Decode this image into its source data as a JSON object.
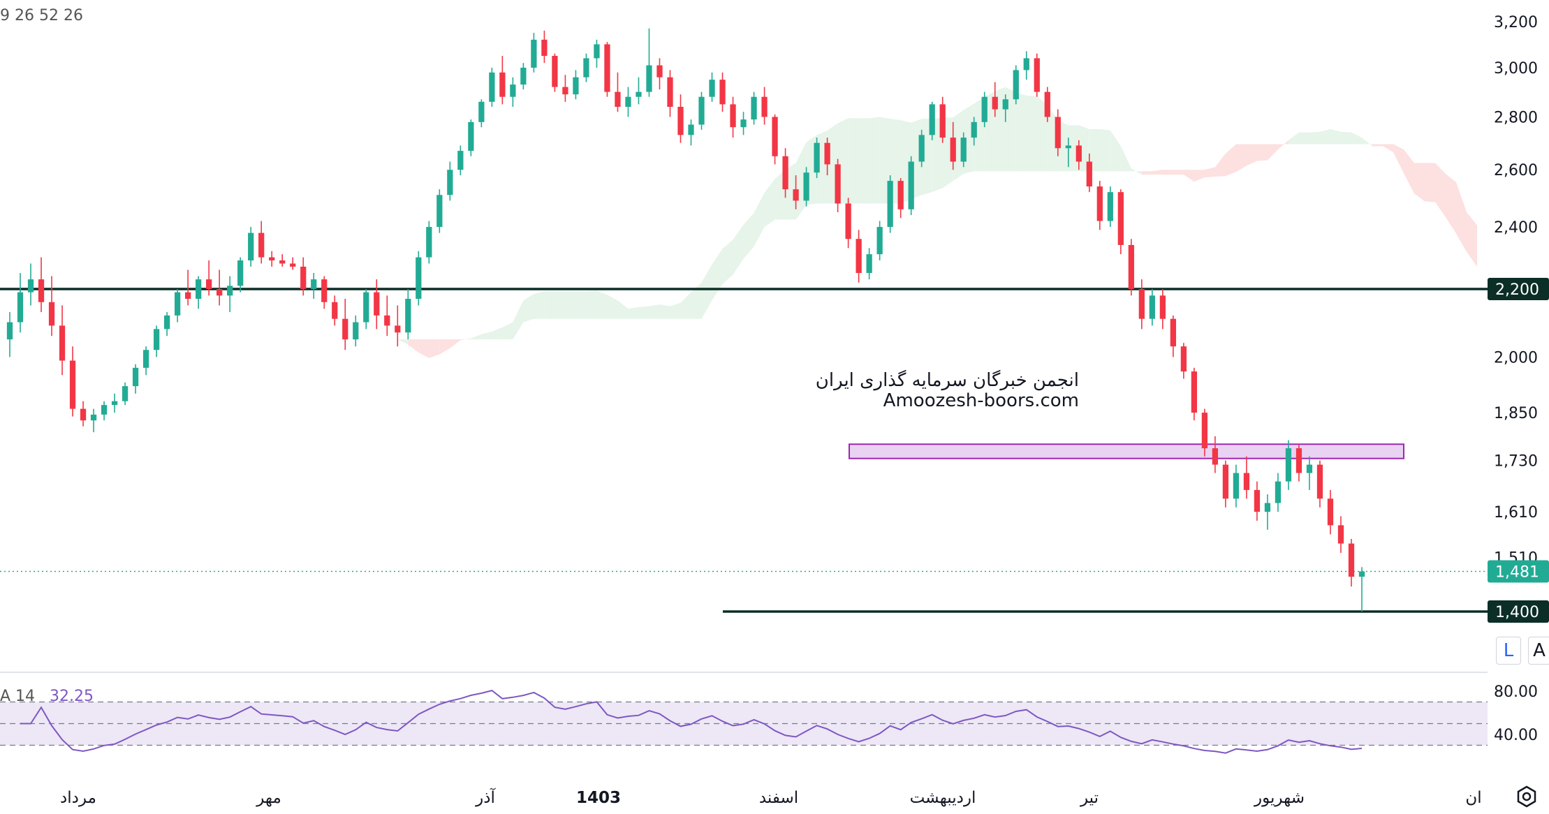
{
  "top_hud": {
    "values_text": "9 26 52 26"
  },
  "rsi_hud": {
    "label": "A 14",
    "value": "32.25"
  },
  "watermark": {
    "line1": "انجمن خبرگان سرمایه گذاری ایران",
    "line2": "Amoozesh-boors.com"
  },
  "buttons": {
    "log_label": "L",
    "auto_label": "A"
  },
  "colors": {
    "bull": "#22ab94",
    "bear": "#f23645",
    "kumo_bull": "#e6f4ea",
    "kumo_bear": "#fde0e0",
    "hline": "#0b2e26",
    "zone": "#e4c7ef",
    "zone_border": "#9c27b0",
    "rsi_line": "#7e57c2",
    "rsi_band": "#ede7f6",
    "last_price": "#22ab94"
  },
  "chart_data": {
    "type": "candlestick",
    "title": "",
    "price_axis": {
      "ticks": [
        "3,200",
        "3,000",
        "2,800",
        "2,600",
        "2,400",
        "2,000",
        "1,850",
        "1,730",
        "1,610",
        "1,510"
      ],
      "range": [
        1380,
        3220
      ],
      "scale": "log"
    },
    "time_axis": {
      "labels": [
        "مرداد",
        "مهر",
        "آذر",
        "1403",
        "اسفند",
        "اردیبهشت",
        "تیر",
        "شهریور",
        "ان"
      ]
    },
    "horizontal_lines": [
      {
        "value": 2200,
        "label": "2,200"
      },
      {
        "value": 1400,
        "label": "1,400"
      }
    ],
    "zone": {
      "top": 1770,
      "bottom": 1735
    },
    "last_price": {
      "value": 1481,
      "label": "1,481"
    },
    "rsi": {
      "period": 14,
      "last": 32.25,
      "ticks": [
        "80.00",
        "40.00"
      ],
      "band": [
        30,
        70
      ],
      "mid": 50
    },
    "candles": [
      [
        2050,
        2130,
        2000,
        2100
      ],
      [
        2100,
        2250,
        2070,
        2190
      ],
      [
        2190,
        2280,
        2150,
        2230
      ],
      [
        2230,
        2300,
        2130,
        2160
      ],
      [
        2160,
        2240,
        2060,
        2090
      ],
      [
        2090,
        2150,
        1950,
        1990
      ],
      [
        1990,
        2030,
        1840,
        1860
      ],
      [
        1860,
        1880,
        1815,
        1830
      ],
      [
        1830,
        1860,
        1800,
        1845
      ],
      [
        1845,
        1880,
        1830,
        1870
      ],
      [
        1870,
        1900,
        1850,
        1880
      ],
      [
        1880,
        1930,
        1870,
        1920
      ],
      [
        1920,
        1980,
        1900,
        1970
      ],
      [
        1970,
        2030,
        1950,
        2020
      ],
      [
        2020,
        2090,
        2000,
        2080
      ],
      [
        2080,
        2130,
        2060,
        2120
      ],
      [
        2120,
        2200,
        2100,
        2190
      ],
      [
        2190,
        2260,
        2150,
        2170
      ],
      [
        2170,
        2240,
        2140,
        2230
      ],
      [
        2230,
        2290,
        2180,
        2200
      ],
      [
        2200,
        2260,
        2150,
        2180
      ],
      [
        2180,
        2240,
        2130,
        2210
      ],
      [
        2210,
        2300,
        2190,
        2290
      ],
      [
        2290,
        2400,
        2270,
        2380
      ],
      [
        2380,
        2420,
        2280,
        2300
      ],
      [
        2300,
        2320,
        2270,
        2290
      ],
      [
        2290,
        2310,
        2270,
        2280
      ],
      [
        2280,
        2300,
        2260,
        2270
      ],
      [
        2270,
        2300,
        2180,
        2200
      ],
      [
        2200,
        2250,
        2170,
        2230
      ],
      [
        2230,
        2240,
        2140,
        2160
      ],
      [
        2160,
        2180,
        2090,
        2110
      ],
      [
        2110,
        2170,
        2020,
        2050
      ],
      [
        2050,
        2120,
        2030,
        2100
      ],
      [
        2100,
        2200,
        2080,
        2190
      ],
      [
        2190,
        2230,
        2080,
        2120
      ],
      [
        2120,
        2180,
        2060,
        2090
      ],
      [
        2090,
        2150,
        2030,
        2070
      ],
      [
        2070,
        2200,
        2050,
        2170
      ],
      [
        2170,
        2320,
        2150,
        2300
      ],
      [
        2300,
        2420,
        2280,
        2400
      ],
      [
        2400,
        2530,
        2380,
        2510
      ],
      [
        2510,
        2630,
        2490,
        2600
      ],
      [
        2600,
        2690,
        2580,
        2670
      ],
      [
        2670,
        2790,
        2650,
        2780
      ],
      [
        2780,
        2870,
        2760,
        2860
      ],
      [
        2860,
        3000,
        2840,
        2980
      ],
      [
        2980,
        3050,
        2850,
        2880
      ],
      [
        2880,
        2960,
        2840,
        2930
      ],
      [
        2930,
        3020,
        2910,
        3000
      ],
      [
        3000,
        3150,
        2980,
        3120
      ],
      [
        3120,
        3160,
        3020,
        3050
      ],
      [
        3050,
        3060,
        2900,
        2920
      ],
      [
        2920,
        2970,
        2860,
        2890
      ],
      [
        2890,
        2990,
        2870,
        2960
      ],
      [
        2960,
        3060,
        2940,
        3040
      ],
      [
        3040,
        3120,
        3000,
        3100
      ],
      [
        3100,
        3110,
        2880,
        2900
      ],
      [
        2900,
        2980,
        2820,
        2840
      ],
      [
        2840,
        2920,
        2800,
        2880
      ],
      [
        2880,
        2960,
        2850,
        2900
      ],
      [
        2900,
        3170,
        2880,
        3010
      ],
      [
        3010,
        3040,
        2910,
        2960
      ],
      [
        2960,
        2990,
        2800,
        2840
      ],
      [
        2840,
        2890,
        2700,
        2730
      ],
      [
        2730,
        2790,
        2690,
        2770
      ],
      [
        2770,
        2900,
        2750,
        2880
      ],
      [
        2880,
        2980,
        2860,
        2950
      ],
      [
        2950,
        2980,
        2820,
        2850
      ],
      [
        2850,
        2880,
        2720,
        2760
      ],
      [
        2760,
        2820,
        2730,
        2790
      ],
      [
        2790,
        2900,
        2770,
        2880
      ],
      [
        2880,
        2920,
        2770,
        2800
      ],
      [
        2800,
        2810,
        2620,
        2650
      ],
      [
        2650,
        2680,
        2500,
        2530
      ],
      [
        2530,
        2580,
        2460,
        2490
      ],
      [
        2490,
        2610,
        2470,
        2590
      ],
      [
        2590,
        2720,
        2570,
        2700
      ],
      [
        2700,
        2720,
        2580,
        2620
      ],
      [
        2620,
        2640,
        2450,
        2480
      ],
      [
        2480,
        2500,
        2330,
        2360
      ],
      [
        2360,
        2390,
        2220,
        2250
      ],
      [
        2250,
        2330,
        2230,
        2310
      ],
      [
        2310,
        2420,
        2290,
        2400
      ],
      [
        2400,
        2580,
        2380,
        2560
      ],
      [
        2560,
        2570,
        2430,
        2460
      ],
      [
        2460,
        2650,
        2440,
        2630
      ],
      [
        2630,
        2750,
        2610,
        2730
      ],
      [
        2730,
        2860,
        2710,
        2850
      ],
      [
        2850,
        2880,
        2700,
        2720
      ],
      [
        2720,
        2780,
        2600,
        2630
      ],
      [
        2630,
        2740,
        2610,
        2720
      ],
      [
        2720,
        2800,
        2690,
        2780
      ],
      [
        2780,
        2900,
        2760,
        2880
      ],
      [
        2880,
        2940,
        2800,
        2830
      ],
      [
        2830,
        2890,
        2780,
        2870
      ],
      [
        2870,
        3010,
        2850,
        2990
      ],
      [
        2990,
        3070,
        2950,
        3040
      ],
      [
        3040,
        3060,
        2880,
        2900
      ],
      [
        2900,
        2920,
        2780,
        2800
      ],
      [
        2800,
        2830,
        2650,
        2680
      ],
      [
        2680,
        2720,
        2610,
        2690
      ],
      [
        2690,
        2710,
        2600,
        2630
      ],
      [
        2630,
        2660,
        2520,
        2540
      ],
      [
        2540,
        2560,
        2390,
        2420
      ],
      [
        2420,
        2540,
        2400,
        2520
      ],
      [
        2520,
        2530,
        2310,
        2340
      ],
      [
        2340,
        2360,
        2180,
        2200
      ],
      [
        2200,
        2230,
        2080,
        2110
      ],
      [
        2110,
        2200,
        2090,
        2180
      ],
      [
        2180,
        2200,
        2080,
        2110
      ],
      [
        2110,
        2120,
        2000,
        2030
      ],
      [
        2030,
        2040,
        1940,
        1960
      ],
      [
        1960,
        1970,
        1830,
        1850
      ],
      [
        1850,
        1860,
        1740,
        1760
      ],
      [
        1760,
        1790,
        1700,
        1720
      ],
      [
        1720,
        1730,
        1620,
        1640
      ],
      [
        1640,
        1720,
        1620,
        1700
      ],
      [
        1700,
        1740,
        1640,
        1660
      ],
      [
        1660,
        1680,
        1590,
        1610
      ],
      [
        1610,
        1650,
        1570,
        1630
      ],
      [
        1630,
        1700,
        1610,
        1680
      ],
      [
        1680,
        1780,
        1660,
        1760
      ],
      [
        1760,
        1770,
        1680,
        1700
      ],
      [
        1700,
        1740,
        1660,
        1720
      ],
      [
        1720,
        1730,
        1620,
        1640
      ],
      [
        1640,
        1660,
        1560,
        1580
      ],
      [
        1580,
        1600,
        1520,
        1540
      ],
      [
        1540,
        1550,
        1450,
        1470
      ],
      [
        1470,
        1490,
        1400,
        1481
      ]
    ]
  }
}
